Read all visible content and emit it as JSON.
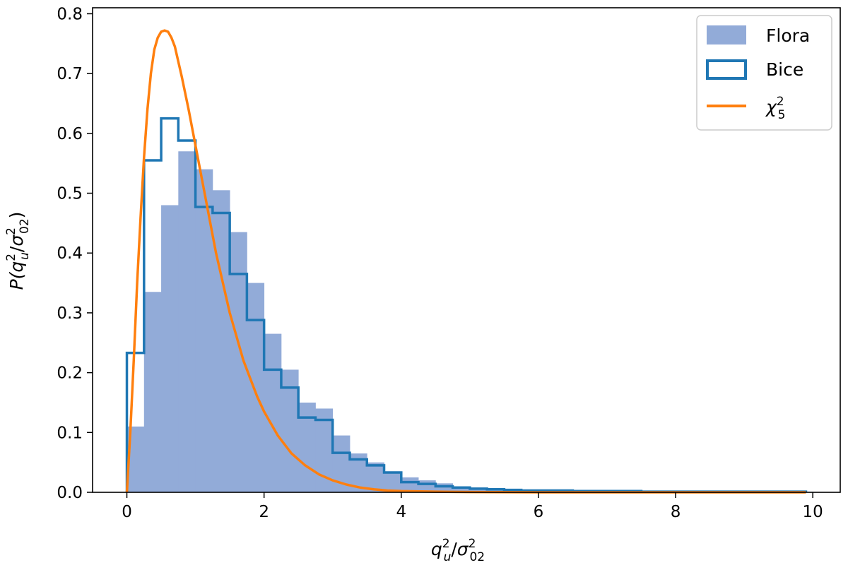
{
  "chart_data": {
    "type": "bar",
    "xlim": [
      -0.5,
      10.4
    ],
    "ylim": [
      0,
      0.81
    ],
    "xticks": [
      0,
      2,
      4,
      6,
      8,
      10
    ],
    "xtick_labels": [
      "0",
      "2",
      "4",
      "6",
      "8",
      "10"
    ],
    "yticks": [
      0.0,
      0.1,
      0.2,
      0.3,
      0.4,
      0.5,
      0.6,
      0.7,
      0.8
    ],
    "ytick_labels": [
      "0.0",
      "0.1",
      "0.2",
      "0.3",
      "0.4",
      "0.5",
      "0.6",
      "0.7",
      "0.8"
    ],
    "xlabel": {
      "base": "q",
      "sup": "2",
      "sub": "u",
      "sep": "/",
      "base2": "σ",
      "sup2": "2",
      "sub2": "02"
    },
    "ylabel": {
      "prefix": "P(",
      "base": "q",
      "sup": "2",
      "sub": "u",
      "sep": "/",
      "base2": "σ",
      "sup2": "2",
      "sub2": "02",
      "suffix": ")"
    },
    "grid": false,
    "legend_position": "top-right",
    "series": [
      {
        "name": "Flora",
        "kind": "filled-histogram",
        "color": "#92abd8",
        "bin_width": 0.25,
        "bin_starts": [
          0,
          0.25,
          0.5,
          0.75,
          1.0,
          1.25,
          1.5,
          1.75,
          2.0,
          2.25,
          2.5,
          2.75,
          3.0,
          3.25,
          3.5,
          3.75,
          4.0,
          4.25,
          4.5,
          4.75,
          5.0,
          5.25,
          5.5,
          5.75,
          6.0,
          6.25,
          6.5,
          6.75,
          7.0,
          7.25,
          7.5,
          7.75,
          8.0,
          8.25,
          8.5,
          8.75,
          9.0,
          9.25,
          9.5,
          9.75
        ],
        "values": [
          0.11,
          0.335,
          0.48,
          0.57,
          0.54,
          0.505,
          0.435,
          0.35,
          0.265,
          0.205,
          0.15,
          0.14,
          0.095,
          0.065,
          0.05,
          0.035,
          0.025,
          0.02,
          0.015,
          0.01,
          0.008,
          0.006,
          0.005,
          0.004,
          0.003,
          0.003,
          0.002,
          0.002,
          0.002,
          0.002,
          0.002,
          0.001,
          0.001,
          0.001,
          0.001,
          0.001,
          0.001,
          0.001,
          0.001,
          0.001
        ]
      },
      {
        "name": "Bice",
        "kind": "step-histogram",
        "color": "#1f77b4",
        "bin_width": 0.125,
        "bin_starts": [
          0,
          0.125,
          0.25,
          0.375,
          0.5,
          0.625,
          0.75,
          0.875,
          1.0,
          1.125,
          1.25,
          1.375,
          1.5,
          1.625,
          1.75,
          1.875,
          2.0,
          2.125,
          2.25,
          2.375,
          2.5,
          2.625,
          2.75,
          2.875,
          3.0,
          3.125,
          3.25,
          3.375,
          3.5,
          3.625,
          3.75,
          3.875,
          4.0,
          4.25,
          4.5,
          4.75,
          5.0,
          5.25,
          5.5,
          5.75,
          6.0,
          6.5,
          7.0,
          7.5,
          8.0,
          8.5,
          9.0,
          9.5
        ],
        "values": [
          0.233,
          0.233,
          0.555,
          0.555,
          0.625,
          0.625,
          0.588,
          0.588,
          0.477,
          0.477,
          0.467,
          0.467,
          0.365,
          0.365,
          0.288,
          0.288,
          0.205,
          0.205,
          0.175,
          0.175,
          0.125,
          0.125,
          0.121,
          0.121,
          0.066,
          0.066,
          0.055,
          0.055,
          0.045,
          0.045,
          0.033,
          0.033,
          0.017,
          0.014,
          0.01,
          0.008,
          0.006,
          0.005,
          0.004,
          0.003,
          0.003,
          0.002,
          0.002,
          0.001,
          0.001,
          0.001,
          0.001,
          0.001
        ],
        "x_end": 9.9
      },
      {
        "name": "χ",
        "name_sup": "2",
        "name_sub": "5",
        "kind": "line",
        "color": "#ff7f0e",
        "x": [
          0,
          0.05,
          0.1,
          0.15,
          0.2,
          0.25,
          0.3,
          0.35,
          0.4,
          0.45,
          0.5,
          0.55,
          0.6,
          0.65,
          0.7,
          0.75,
          0.8,
          0.9,
          1.0,
          1.1,
          1.2,
          1.3,
          1.4,
          1.5,
          1.6,
          1.7,
          1.8,
          1.9,
          2.0,
          2.2,
          2.4,
          2.6,
          2.8,
          3.0,
          3.2,
          3.4,
          3.6,
          3.8,
          4.0,
          4.5,
          5.0,
          6.0,
          7.0,
          8.0,
          9.0,
          9.9
        ],
        "values": [
          0.0,
          0.1,
          0.22,
          0.35,
          0.46,
          0.56,
          0.64,
          0.7,
          0.74,
          0.76,
          0.77,
          0.772,
          0.77,
          0.76,
          0.745,
          0.72,
          0.695,
          0.64,
          0.58,
          0.52,
          0.46,
          0.4,
          0.35,
          0.3,
          0.26,
          0.22,
          0.19,
          0.16,
          0.135,
          0.095,
          0.065,
          0.045,
          0.03,
          0.02,
          0.013,
          0.008,
          0.005,
          0.003,
          0.002,
          0.001,
          0.0005,
          0.0,
          0.0,
          0.0,
          0.0,
          0.0
        ]
      }
    ]
  }
}
